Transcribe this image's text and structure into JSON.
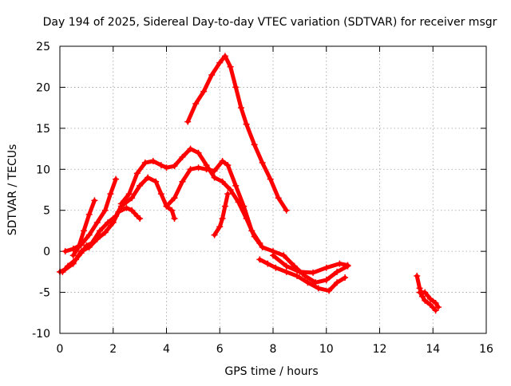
{
  "chart_data": {
    "type": "scatter",
    "title": "Day 194 of 2025, Sidereal Day-to-day VTEC variation (SDTVAR) for receiver msgr",
    "xlabel": "GPS time / hours",
    "ylabel": "SDTVAR / TECUs",
    "xlim": [
      0,
      16
    ],
    "ylim": [
      -10,
      25
    ],
    "xticks": [
      0,
      2,
      4,
      6,
      8,
      10,
      12,
      14,
      16
    ],
    "yticks": [
      -10,
      -5,
      0,
      5,
      10,
      15,
      20,
      25
    ],
    "grid": true,
    "marker": "+",
    "color": "#ff0000",
    "series": [
      {
        "name": "track-1",
        "points": [
          [
            0.0,
            -2.5
          ],
          [
            0.2,
            -2.2
          ],
          [
            0.5,
            -1.5
          ],
          [
            0.8,
            0.0
          ],
          [
            1.1,
            0.5
          ],
          [
            1.4,
            1.5
          ],
          [
            1.7,
            2.3
          ],
          [
            2.0,
            3.5
          ],
          [
            2.2,
            4.8
          ],
          [
            2.5,
            5.3
          ],
          [
            2.7,
            5.0
          ],
          [
            2.9,
            4.3
          ],
          [
            3.0,
            4.0
          ]
        ]
      },
      {
        "name": "track-2",
        "points": [
          [
            0.1,
            -2.5
          ],
          [
            0.3,
            -1.8
          ],
          [
            0.6,
            -1.0
          ],
          [
            0.8,
            -0.2
          ],
          [
            1.0,
            0.7
          ],
          [
            1.2,
            1.0
          ],
          [
            1.5,
            2.5
          ],
          [
            1.8,
            3.5
          ],
          [
            2.1,
            4.3
          ],
          [
            2.3,
            5.5
          ],
          [
            2.7,
            6.5
          ],
          [
            3.0,
            8.0
          ],
          [
            3.3,
            9.0
          ],
          [
            3.6,
            8.5
          ],
          [
            3.8,
            7.0
          ],
          [
            4.0,
            5.5
          ],
          [
            4.2,
            5.0
          ],
          [
            4.3,
            4.0
          ]
        ]
      },
      {
        "name": "track-3",
        "points": [
          [
            0.2,
            0.0
          ],
          [
            0.5,
            0.3
          ],
          [
            0.8,
            0.8
          ],
          [
            1.1,
            2.0
          ],
          [
            1.4,
            3.5
          ],
          [
            1.7,
            5.0
          ],
          [
            1.9,
            7.0
          ],
          [
            2.1,
            8.8
          ]
        ]
      },
      {
        "name": "track-4",
        "points": [
          [
            0.5,
            -0.5
          ],
          [
            0.7,
            0.5
          ],
          [
            0.9,
            2.5
          ],
          [
            1.1,
            4.5
          ],
          [
            1.3,
            6.2
          ]
        ]
      },
      {
        "name": "track-5",
        "points": [
          [
            2.3,
            5.8
          ],
          [
            2.6,
            7.0
          ],
          [
            2.9,
            9.5
          ],
          [
            3.2,
            10.8
          ],
          [
            3.5,
            11.0
          ],
          [
            3.8,
            10.5
          ],
          [
            4.0,
            10.2
          ],
          [
            4.3,
            10.4
          ],
          [
            4.6,
            11.5
          ],
          [
            4.9,
            12.5
          ],
          [
            5.2,
            12.0
          ],
          [
            5.5,
            10.5
          ],
          [
            5.8,
            9.0
          ],
          [
            6.1,
            8.5
          ],
          [
            6.4,
            7.5
          ],
          [
            6.7,
            6.0
          ],
          [
            7.0,
            4.0
          ],
          [
            7.3,
            1.8
          ],
          [
            7.6,
            0.5
          ],
          [
            8.0,
            0.0
          ],
          [
            8.4,
            -0.5
          ],
          [
            8.8,
            -1.8
          ],
          [
            9.2,
            -3.0
          ],
          [
            9.6,
            -3.8
          ],
          [
            10.0,
            -3.5
          ],
          [
            10.4,
            -2.5
          ],
          [
            10.8,
            -1.8
          ]
        ]
      },
      {
        "name": "track-6",
        "points": [
          [
            4.0,
            5.5
          ],
          [
            4.3,
            6.5
          ],
          [
            4.6,
            8.5
          ],
          [
            4.9,
            10.0
          ],
          [
            5.2,
            10.2
          ],
          [
            5.5,
            10.0
          ],
          [
            5.8,
            9.8
          ],
          [
            6.1,
            11.0
          ],
          [
            6.3,
            10.5
          ],
          [
            6.6,
            8.0
          ],
          [
            6.9,
            5.5
          ],
          [
            7.2,
            2.5
          ],
          [
            7.5,
            1.0
          ]
        ]
      },
      {
        "name": "track-7",
        "points": [
          [
            4.8,
            15.8
          ],
          [
            5.1,
            18.0
          ],
          [
            5.4,
            19.5
          ],
          [
            5.7,
            21.5
          ],
          [
            6.0,
            23.0
          ],
          [
            6.2,
            23.8
          ],
          [
            6.4,
            22.5
          ],
          [
            6.6,
            20.0
          ],
          [
            6.8,
            17.5
          ],
          [
            7.0,
            15.5
          ],
          [
            7.3,
            13.0
          ],
          [
            7.6,
            10.8
          ],
          [
            7.9,
            8.8
          ],
          [
            8.2,
            6.5
          ],
          [
            8.5,
            5.0
          ]
        ]
      },
      {
        "name": "track-8",
        "points": [
          [
            5.8,
            2.0
          ],
          [
            6.0,
            3.0
          ],
          [
            6.1,
            4.0
          ],
          [
            6.2,
            5.5
          ],
          [
            6.3,
            7.0
          ]
        ]
      },
      {
        "name": "track-9",
        "points": [
          [
            7.5,
            -1.0
          ],
          [
            7.8,
            -1.5
          ],
          [
            8.1,
            -2.0
          ],
          [
            8.5,
            -2.5
          ],
          [
            8.9,
            -3.0
          ],
          [
            9.3,
            -3.8
          ],
          [
            9.7,
            -4.5
          ],
          [
            10.1,
            -4.8
          ],
          [
            10.4,
            -3.8
          ],
          [
            10.7,
            -3.2
          ]
        ]
      },
      {
        "name": "track-10",
        "points": [
          [
            8.0,
            -0.5
          ],
          [
            8.5,
            -1.8
          ],
          [
            9.0,
            -2.5
          ],
          [
            9.5,
            -2.6
          ],
          [
            10.0,
            -2.0
          ],
          [
            10.5,
            -1.5
          ],
          [
            10.8,
            -1.7
          ]
        ]
      },
      {
        "name": "track-11",
        "points": [
          [
            13.4,
            -3.0
          ],
          [
            13.5,
            -4.5
          ],
          [
            13.6,
            -5.5
          ],
          [
            13.7,
            -6.0
          ],
          [
            13.9,
            -6.5
          ],
          [
            14.1,
            -7.2
          ]
        ]
      },
      {
        "name": "track-12",
        "points": [
          [
            13.5,
            -5.0
          ],
          [
            13.7,
            -5.0
          ],
          [
            13.9,
            -5.8
          ],
          [
            14.1,
            -6.3
          ],
          [
            14.2,
            -6.8
          ]
        ]
      }
    ]
  }
}
